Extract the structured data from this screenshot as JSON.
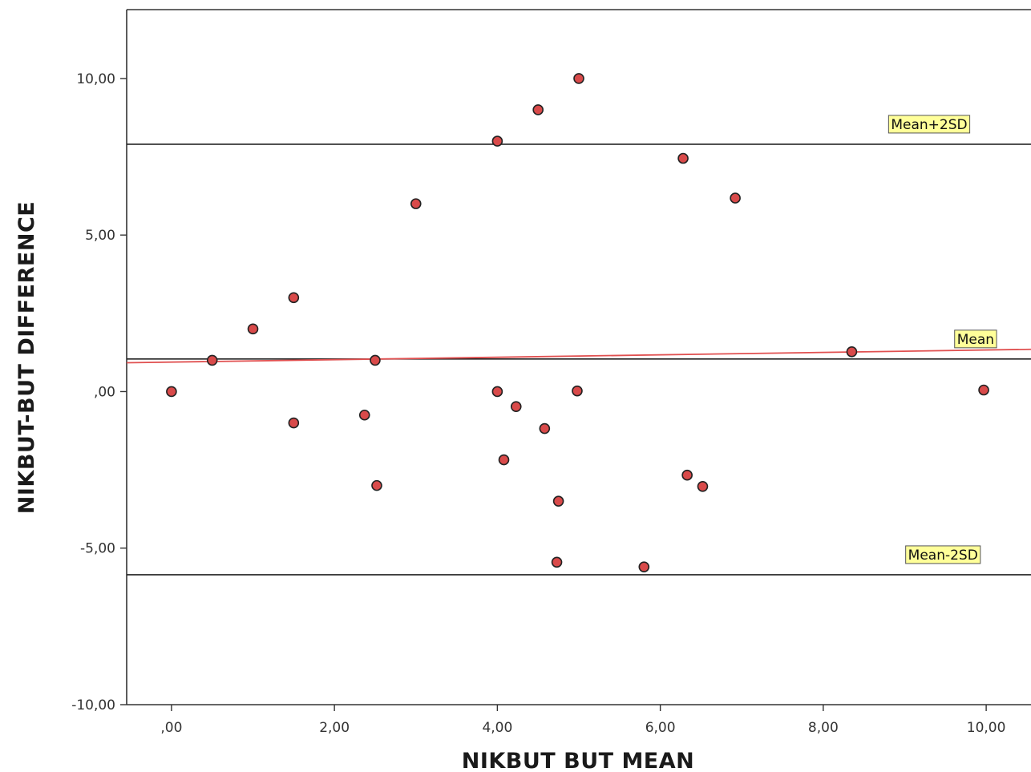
{
  "chart_data": {
    "type": "scatter",
    "xlabel": "NIKBUT BUT MEAN",
    "ylabel": "NIKBUT-BUT DIFFERENCE",
    "xlim": [
      -0.55,
      10.55
    ],
    "ylim": [
      -10,
      12.2
    ],
    "xticks": [
      0,
      2,
      4,
      6,
      8,
      10
    ],
    "xtick_labels": [
      ",00",
      "2,00",
      "4,00",
      "6,00",
      "8,00",
      "10,00"
    ],
    "yticks": [
      10,
      5,
      0,
      -5,
      -10
    ],
    "ytick_labels": [
      "10,00",
      "5,00",
      ",00",
      "-5,00",
      "-10,00"
    ],
    "grid": false,
    "colors": {
      "point": "#d94a4a",
      "fit": "#e05050",
      "reference": "#222222",
      "label_box": "#ffff99"
    },
    "reference_lines": [
      {
        "label": "Mean+2SD",
        "y": 7.9
      },
      {
        "label": "Mean",
        "y": 1.04
      },
      {
        "label": "Mean-2SD",
        "y": -5.85
      }
    ],
    "fit_line": {
      "x": [
        -0.55,
        10.55
      ],
      "y": [
        0.92,
        1.35
      ]
    },
    "points": [
      {
        "x": 0,
        "y": 0
      },
      {
        "x": 0.5,
        "y": 1
      },
      {
        "x": 1,
        "y": 2
      },
      {
        "x": 1.5,
        "y": 3
      },
      {
        "x": 1.5,
        "y": -1
      },
      {
        "x": 2.37,
        "y": -0.75
      },
      {
        "x": 2.5,
        "y": 1
      },
      {
        "x": 2.52,
        "y": -3
      },
      {
        "x": 3,
        "y": 6
      },
      {
        "x": 4,
        "y": 8
      },
      {
        "x": 4,
        "y": 0
      },
      {
        "x": 4.08,
        "y": -2.18
      },
      {
        "x": 4.23,
        "y": -0.48
      },
      {
        "x": 4.5,
        "y": 9
      },
      {
        "x": 4.58,
        "y": -1.18
      },
      {
        "x": 4.73,
        "y": -5.45
      },
      {
        "x": 4.75,
        "y": -3.5
      },
      {
        "x": 4.98,
        "y": 0.02
      },
      {
        "x": 5,
        "y": 10
      },
      {
        "x": 5.8,
        "y": -5.6
      },
      {
        "x": 6.28,
        "y": 7.45
      },
      {
        "x": 6.33,
        "y": -2.67
      },
      {
        "x": 6.52,
        "y": -3.03
      },
      {
        "x": 6.92,
        "y": 6.18
      },
      {
        "x": 8.35,
        "y": 1.27
      },
      {
        "x": 9.97,
        "y": 0.05
      }
    ]
  }
}
